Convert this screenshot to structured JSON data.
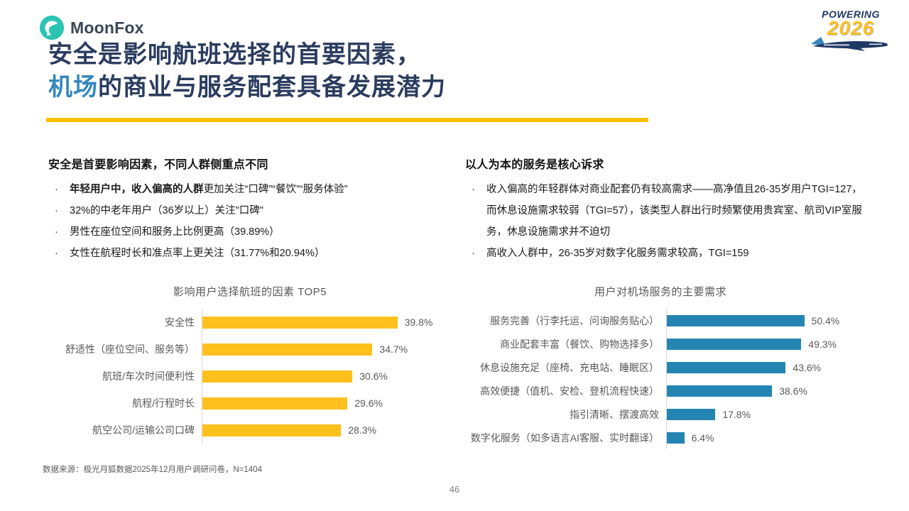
{
  "brand": {
    "name": "MoonFox"
  },
  "event_logo": {
    "line1": "POWERING",
    "line2": "2026"
  },
  "title": {
    "line1": "安全是影响航班选择的首要因素，",
    "line2_highlight": "机场",
    "line2_rest": "的商业与服务配套具备发展潜力"
  },
  "bullet_char": "·",
  "left_panel": {
    "heading": "安全是首要影响因素，不同人群侧重点不同",
    "bullets": [
      {
        "bold": "年轻用户中，收入偏高的人群",
        "text": "更加关注“口碑”“餐饮”“服务体验”"
      },
      {
        "bold": "",
        "text": "32%的中老年用户（36岁以上）关注\"口碑\""
      },
      {
        "bold": "",
        "text": "男性在座位空间和服务上比例更高（39.89%）"
      },
      {
        "bold": "",
        "text": "女性在航程时长和准点率上更关注（31.77%和20.94%）"
      }
    ]
  },
  "right_panel": {
    "heading": "以人为本的服务是核心诉求",
    "bullets": [
      {
        "bold": "",
        "text": "收入偏高的年轻群体对商业配套仍有较高需求——高净值且26-35岁用户TGI=127，而休息设施需求较弱（TGI=57），该类型人群出行时频繁使用贵宾室、航司VIP室服务，休息设施需求并不迫切"
      },
      {
        "bold": "",
        "text": "高收入人群中，26-35岁对数字化服务需求较高，TGI=159"
      }
    ]
  },
  "chart_data": [
    {
      "type": "bar",
      "orientation": "horizontal",
      "title": "影响用户选择航班的因素 TOP5",
      "categories": [
        "安全性",
        "舒适性（座位空间、服务等）",
        "航班/车次时间便利性",
        "航程/行程时长",
        "航空公司/运输公司口碑"
      ],
      "values": [
        39.8,
        34.7,
        30.6,
        29.6,
        28.3
      ],
      "value_labels": [
        "39.8%",
        "34.7%",
        "30.6%",
        "29.6%",
        "28.3%"
      ],
      "bar_color": "#FEC01D",
      "xlim": [
        0,
        45
      ],
      "grid": false,
      "legend": false
    },
    {
      "type": "bar",
      "orientation": "horizontal",
      "title": "用户对机场服务的主要需求",
      "categories": [
        "服务完善（行李托运、问询服务贴心）",
        "商业配套丰富（餐饮、购物选择多）",
        "休息设施充足（座椅、充电站、睡眠区）",
        "高效便捷（值机、安检、登机流程快速）",
        "指引清晰、摆渡高效",
        "数字化服务（如多语言AI客服、实时翻译）"
      ],
      "values": [
        50.4,
        49.3,
        43.6,
        38.6,
        17.8,
        6.4
      ],
      "value_labels": [
        "50.4%",
        "49.3%",
        "43.6%",
        "38.6%",
        "17.8%",
        "6.4%"
      ],
      "bar_color": "#2585B2",
      "xlim": [
        0,
        56
      ],
      "grid": false,
      "legend": false
    }
  ],
  "footer": {
    "source": "数据来源：极光月狐数据2025年12月用户调研问卷，N=1404",
    "page_number": "46"
  },
  "colors": {
    "title_navy": "#2B3C5E",
    "accent_blue": "#3487BB",
    "brand_teal": "#2BC4B2",
    "accent_yellow": "#FFC000",
    "bar_yellow": "#FEC01D",
    "bar_blue": "#2585B2"
  }
}
